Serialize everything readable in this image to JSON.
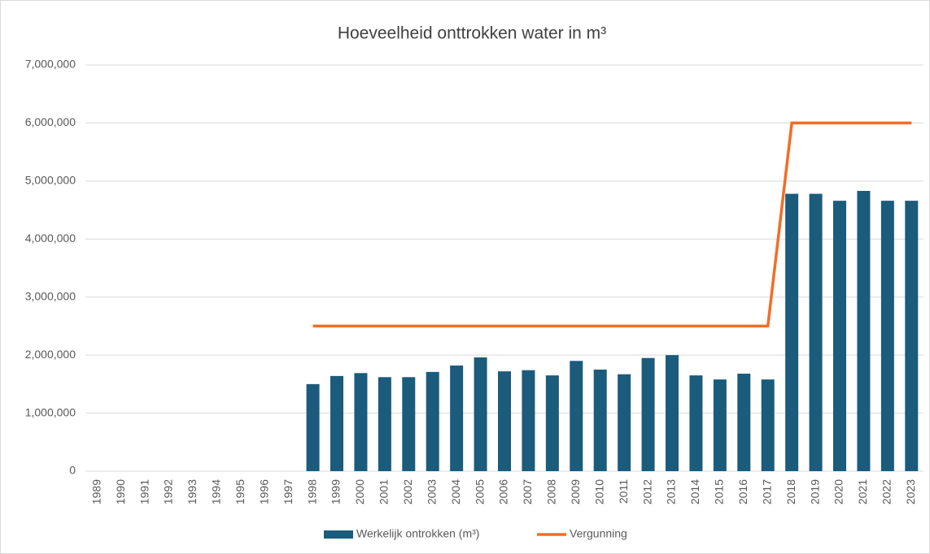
{
  "chart_data": {
    "type": "bar-line",
    "title": "Hoeveelheid onttrokken water in m³",
    "categories": [
      "1989",
      "1990",
      "1991",
      "1992",
      "1993",
      "1994",
      "1995",
      "1996",
      "1997",
      "1998",
      "1999",
      "2000",
      "2001",
      "2002",
      "2003",
      "2004",
      "2005",
      "2006",
      "2007",
      "2008",
      "2009",
      "2010",
      "2011",
      "2012",
      "2013",
      "2014",
      "2015",
      "2016",
      "2017",
      "2018",
      "2019",
      "2020",
      "2021",
      "2022",
      "2023"
    ],
    "series": [
      {
        "name": "Werkelijk ontrokken (m³)",
        "type": "bar",
        "color": "#1b5b7c",
        "values": [
          null,
          null,
          null,
          null,
          null,
          null,
          null,
          null,
          null,
          1500000,
          1640000,
          1690000,
          1620000,
          1620000,
          1710000,
          1820000,
          1960000,
          1720000,
          1740000,
          1650000,
          1900000,
          1750000,
          1670000,
          1950000,
          2000000,
          1650000,
          1580000,
          1680000,
          1580000,
          4780000,
          4780000,
          4660000,
          4830000,
          4660000,
          4660000
        ]
      },
      {
        "name": "Vergunning",
        "type": "line",
        "color": "#f26d24",
        "values": [
          null,
          null,
          null,
          null,
          null,
          null,
          null,
          null,
          null,
          2500000,
          2500000,
          2500000,
          2500000,
          2500000,
          2500000,
          2500000,
          2500000,
          2500000,
          2500000,
          2500000,
          2500000,
          2500000,
          2500000,
          2500000,
          2500000,
          2500000,
          2500000,
          2500000,
          2500000,
          6000000,
          6000000,
          6000000,
          6000000,
          6000000,
          6000000
        ]
      }
    ],
    "ylim": [
      0,
      7000000
    ],
    "yticks": [
      0,
      {
        "value": 1000000,
        "label": "1,000,000"
      },
      {
        "value": 2000000,
        "label": "2,000,000"
      },
      {
        "value": 3000000,
        "label": "3,000,000"
      },
      {
        "value": 4000000,
        "label": "4,000,000"
      },
      {
        "value": 5000000,
        "label": "5,000,000"
      },
      {
        "value": 6000000,
        "label": "6,000,000"
      },
      {
        "value": 7000000,
        "label": "7,000,000"
      }
    ],
    "grid": true,
    "legend": "bottom"
  }
}
